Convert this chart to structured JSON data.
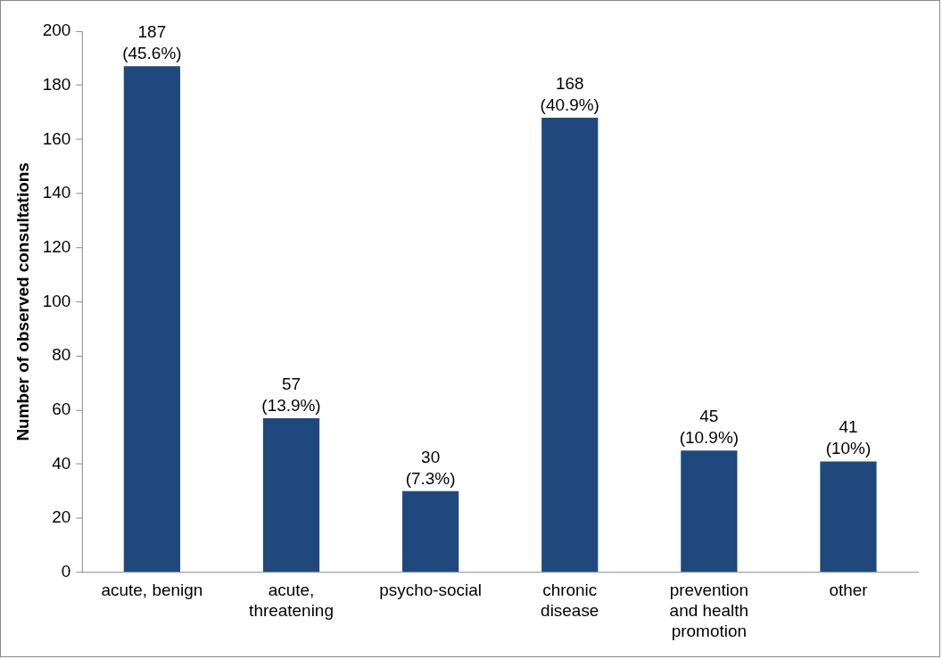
{
  "chart_data": {
    "type": "bar",
    "ylabel": "Number of observed consultations",
    "categories": [
      "acute, benign",
      "acute, threatening",
      "psycho-social",
      "chronic disease",
      "prevention and health promotion",
      "other"
    ],
    "values": [
      187,
      57,
      30,
      168,
      45,
      41
    ],
    "color": "#1f497d",
    "value_labels": [
      "187\n(45.6%)",
      "57\n(13.9%)",
      "30\n(7.3%)",
      "168\n(40.9%)",
      "45\n(10.9%)",
      "41\n(10%)"
    ],
    "ylim": [
      0,
      200
    ],
    "yticks": [
      0,
      20,
      40,
      60,
      80,
      100,
      120,
      140,
      160,
      180,
      200
    ],
    "grid": false,
    "legend": false
  }
}
